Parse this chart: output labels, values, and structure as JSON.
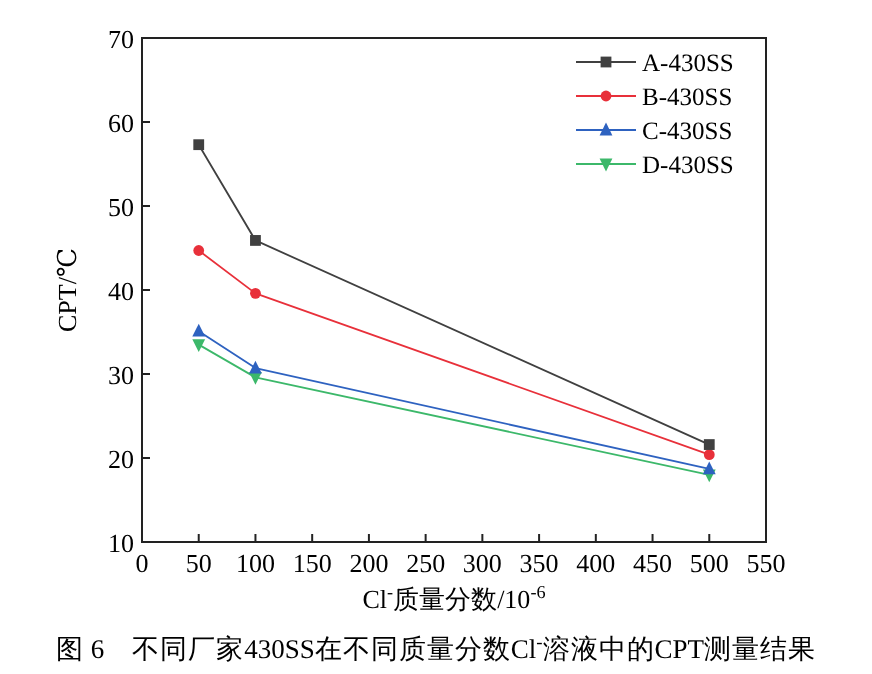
{
  "chart_data": {
    "type": "line",
    "xlabel": "Cl$^{-}$质量分数/10$^{-6}$",
    "ylabel": "CPT/℃",
    "x": [
      50,
      100,
      500
    ],
    "series": [
      {
        "name": "A-430SS",
        "color": "#404040",
        "marker": "square",
        "values": [
          57.3,
          45.9,
          21.6
        ]
      },
      {
        "name": "B-430SS",
        "color": "#e8303a",
        "marker": "circle",
        "values": [
          44.7,
          39.6,
          20.4
        ]
      },
      {
        "name": "C-430SS",
        "color": "#2e62c0",
        "marker": "triangle",
        "values": [
          35.1,
          30.7,
          18.7
        ]
      },
      {
        "name": "D-430SS",
        "color": "#3cb86a",
        "marker": "triangle-down",
        "values": [
          33.5,
          29.6,
          18.0
        ]
      }
    ],
    "xlim": [
      0,
      550
    ],
    "xticks": [
      0,
      50,
      100,
      150,
      200,
      250,
      300,
      350,
      400,
      450,
      500,
      550
    ],
    "ylim": [
      10,
      70
    ],
    "yticks": [
      10,
      20,
      30,
      40,
      50,
      60,
      70
    ],
    "grid": false,
    "legend": "top right",
    "line_style": "solid",
    "annotations": [
      "图 6　不同厂家430SS在不同质量分数Cl$^{-}$溶液中的CPT测量结果"
    ]
  }
}
